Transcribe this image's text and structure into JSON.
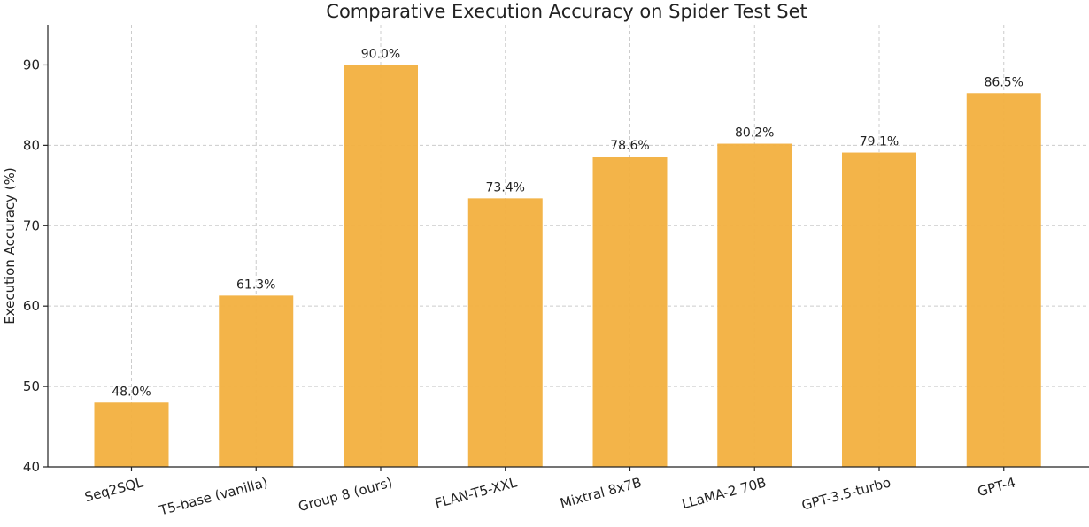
{
  "chart_data": {
    "type": "bar",
    "title": "Comparative Execution Accuracy on Spider Test Set",
    "xlabel": "",
    "ylabel": "Execution Accuracy (%)",
    "categories": [
      "Seq2SQL",
      "T5-base (vanilla)",
      "Group 8 (ours)",
      "FLAN-T5-XXL",
      "Mixtral 8x7B",
      "LLaMA-2 70B",
      "GPT-3.5-turbo",
      "GPT-4"
    ],
    "values": [
      48.0,
      61.3,
      90.0,
      73.4,
      78.6,
      80.2,
      79.1,
      86.5
    ],
    "data_labels": [
      "48.0%",
      "61.3%",
      "90.0%",
      "73.4%",
      "78.6%",
      "80.2%",
      "79.1%",
      "86.5%"
    ],
    "ylim": [
      40,
      95
    ],
    "yticks": [
      40,
      50,
      60,
      70,
      80,
      90
    ],
    "grid": true,
    "bar_color": "#f2b03f"
  }
}
